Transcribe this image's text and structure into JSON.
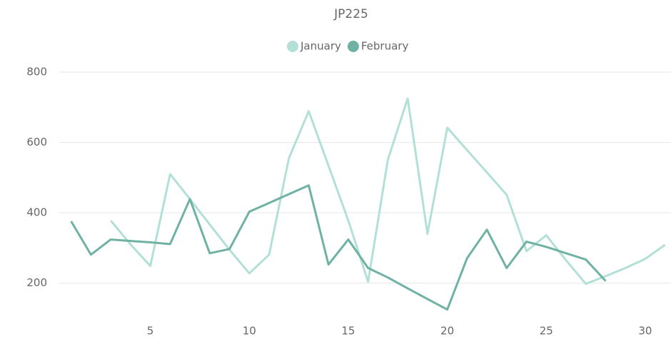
{
  "chart_data": {
    "type": "line",
    "title": "JP225",
    "x": [
      1,
      2,
      3,
      4,
      5,
      6,
      7,
      8,
      9,
      10,
      11,
      12,
      13,
      14,
      15,
      16,
      17,
      18,
      19,
      20,
      21,
      22,
      23,
      24,
      25,
      26,
      27,
      28,
      29,
      30,
      31
    ],
    "series": [
      {
        "name": "January",
        "color": "#b3e0d6",
        "values": [
          null,
          null,
          378,
          310,
          249,
          510,
          439,
          367,
          295,
          228,
          281,
          555,
          689,
          534,
          378,
          204,
          551,
          725,
          340,
          642,
          578,
          515,
          451,
          291,
          336,
          265,
          198,
          220,
          243,
          269,
          309
        ]
      },
      {
        "name": "February",
        "color": "#6fb2a4",
        "values": [
          376,
          281,
          324,
          320,
          316,
          311,
          439,
          285,
          297,
          403,
          428,
          453,
          478,
          253,
          324,
          243,
          216,
          185,
          155,
          125,
          271,
          352,
          243,
          318,
          303,
          285,
          267,
          206,
          null,
          null,
          null
        ]
      }
    ],
    "xlim": [
      0.4,
      31.3
    ],
    "xticks": [
      5,
      10,
      15,
      20,
      25,
      30
    ],
    "ylim": [
      100,
      800
    ],
    "yticks": [
      200,
      400,
      600,
      800
    ],
    "grid": true
  }
}
